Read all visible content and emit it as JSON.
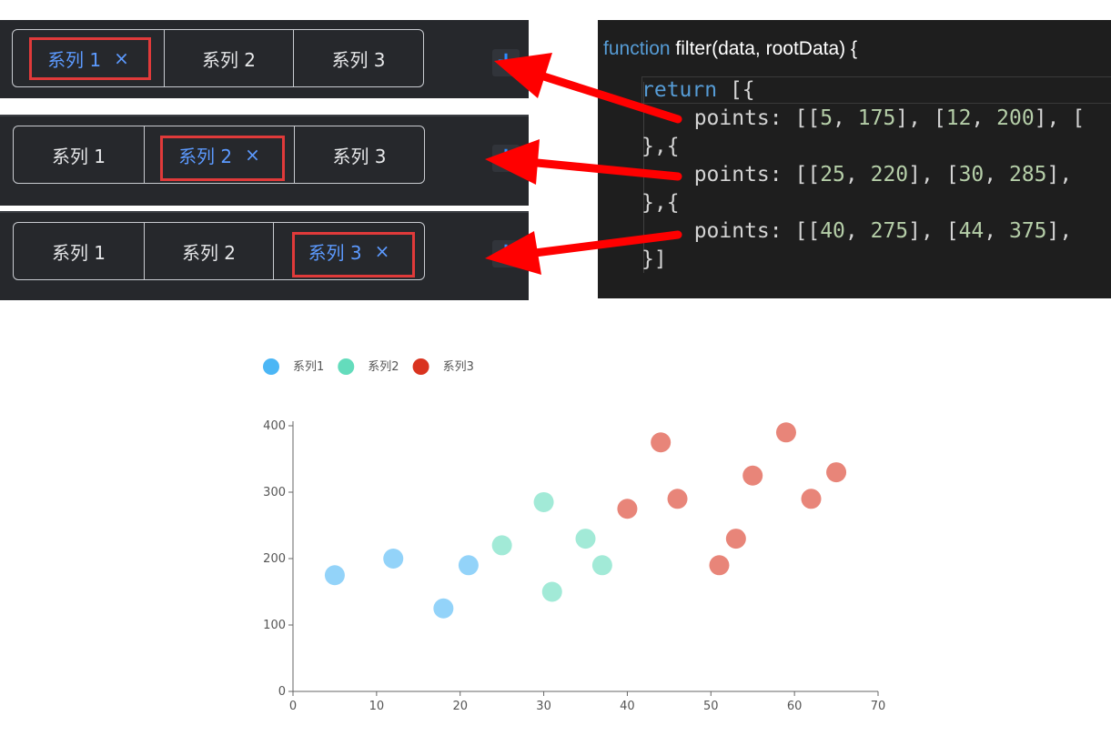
{
  "tab_panels": [
    {
      "tabs": [
        {
          "label": "系列 1",
          "active": true
        },
        {
          "label": "系列 2",
          "active": false
        },
        {
          "label": "系列 3",
          "active": false
        }
      ],
      "add_label": "+"
    },
    {
      "tabs": [
        {
          "label": "系列 1",
          "active": false
        },
        {
          "label": "系列 2",
          "active": true
        },
        {
          "label": "系列 3",
          "active": false
        }
      ],
      "add_label": "+"
    },
    {
      "tabs": [
        {
          "label": "系列 1",
          "active": false
        },
        {
          "label": "系列 2",
          "active": false
        },
        {
          "label": "系列 3",
          "active": true
        }
      ],
      "add_label": "+"
    }
  ],
  "close_glyph": "×",
  "code": {
    "function_keyword": "function",
    "signature": " filter(data, rootData) {",
    "return_keyword": "return",
    "return_rest": " [{",
    "points_lines": [
      {
        "prefix": "  points: [",
        "pairs": [
          [
            "5",
            "175"
          ],
          [
            "12",
            "200"
          ]
        ],
        "tail": ", ["
      },
      {
        "prefix": "  points: [",
        "pairs": [
          [
            "25",
            "220"
          ],
          [
            "30",
            "285"
          ]
        ],
        "tail": ","
      },
      {
        "prefix": "  points: [",
        "pairs": [
          [
            "40",
            "275"
          ],
          [
            "44",
            "375"
          ]
        ],
        "tail": ","
      }
    ],
    "separator": "},{",
    "closing": "}]"
  },
  "colors": {
    "series1": "#4bb6f5",
    "series2": "#64dcbc",
    "series3": "#d9331f",
    "arrow": "#ff0000",
    "highlight": "#e03a3a"
  },
  "chart_data": {
    "type": "scatter",
    "xlim": [
      0,
      70
    ],
    "ylim": [
      0,
      400
    ],
    "x_ticks": [
      0,
      10,
      20,
      30,
      40,
      50,
      60,
      70
    ],
    "y_ticks": [
      0,
      100,
      200,
      300,
      400
    ],
    "legend_position": "top-left",
    "series": [
      {
        "name": "系列1",
        "color": "#4bb6f5",
        "points": [
          [
            5,
            175
          ],
          [
            12,
            200
          ],
          [
            18,
            125
          ],
          [
            21,
            190
          ]
        ]
      },
      {
        "name": "系列2",
        "color": "#64dcbc",
        "points": [
          [
            25,
            220
          ],
          [
            30,
            285
          ],
          [
            31,
            150
          ],
          [
            35,
            230
          ],
          [
            37,
            190
          ]
        ]
      },
      {
        "name": "系列3",
        "color": "#d9331f",
        "points": [
          [
            40,
            275
          ],
          [
            44,
            375
          ],
          [
            46,
            290
          ],
          [
            51,
            190
          ],
          [
            53,
            230
          ],
          [
            55,
            325
          ],
          [
            59,
            390
          ],
          [
            62,
            290
          ],
          [
            65,
            330
          ]
        ]
      }
    ]
  }
}
